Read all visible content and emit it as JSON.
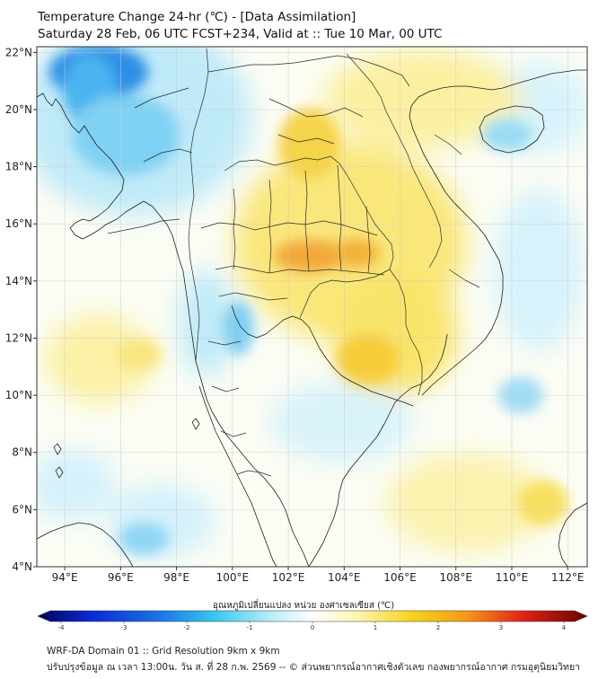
{
  "title_line1": "Temperature Change 24-hr (℃) - [Data Assimilation]",
  "title_line2": "Saturday 28 Feb, 06 UTC FCST+234, Valid at :: Tue 10 Mar, 00 UTC",
  "map": {
    "lon_ticks": [
      "94°E",
      "96°E",
      "98°E",
      "100°E",
      "102°E",
      "104°E",
      "106°E",
      "108°E",
      "110°E",
      "112°E"
    ],
    "lat_ticks": [
      "22°N",
      "20°N",
      "18°N",
      "16°N",
      "14°N",
      "12°N",
      "10°N",
      "8°N",
      "6°N",
      "4°N"
    ],
    "lon_values": [
      94,
      96,
      98,
      100,
      102,
      104,
      106,
      108,
      110,
      112
    ],
    "lat_values": [
      22,
      20,
      18,
      16,
      14,
      12,
      10,
      8,
      6,
      4
    ]
  },
  "colorbar": {
    "title": "อุณหภูมิเปลี่ยนแปลง หน่วย องศาเซลเซียส (℃)",
    "ticks": [
      "-4",
      "-3",
      "-2",
      "-1",
      "0",
      "1",
      "2",
      "3",
      "4"
    ],
    "tick_values": [
      -4,
      -3,
      -2,
      -1,
      0,
      1,
      2,
      3,
      4
    ],
    "range": [
      -4,
      4
    ]
  },
  "footer_line1": "WRF-DA Domain 01 :: Grid Resolution 9km x 9km",
  "footer_line2": "ปรับปรุงข้อมูล ณ เวลา 13:00น. วัน ส. ที่ 28 ก.พ. 2569 -- © ส่วนพยากรณ์อากาศเชิงตัวเลข กองพยากรณ์อากาศ กรมอุตุนิยมวิทยา"
}
